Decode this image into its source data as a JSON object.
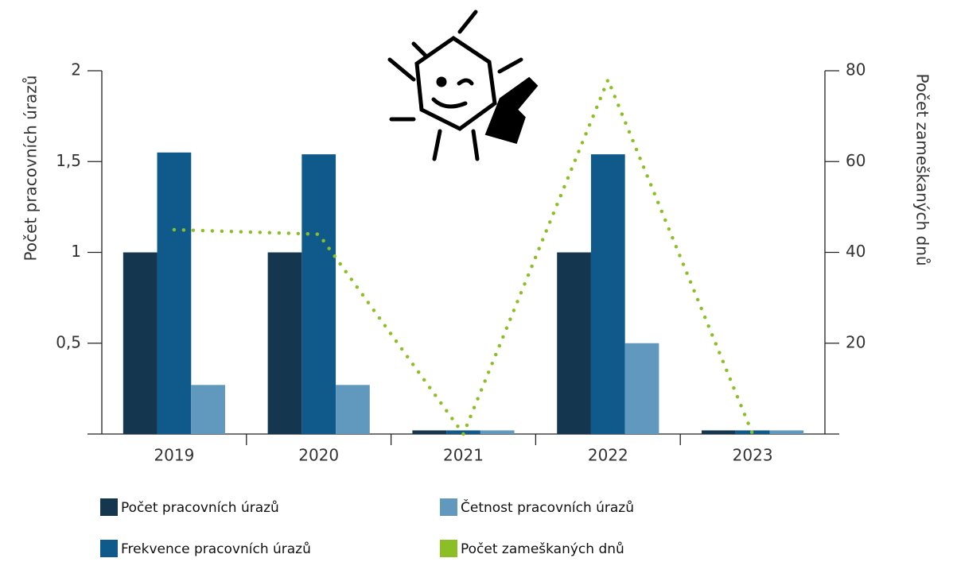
{
  "chart_data": {
    "type": "bar",
    "categories": [
      "2019",
      "2020",
      "2021",
      "2022",
      "2023"
    ],
    "y_label": "Počet pracovních úrazů",
    "y2_label": "Počet zameškaných dnů",
    "ylim": [
      0,
      2
    ],
    "yticks": [
      {
        "value": 0.5,
        "label": "0,5"
      },
      1,
      {
        "value": 1.5,
        "label": "1,5"
      },
      2
    ],
    "y2lim": [
      0,
      80
    ],
    "y2ticks": [
      20,
      40,
      60,
      80
    ],
    "series": [
      {
        "name": "Počet pracovních úrazů",
        "color": "#14374f",
        "values": [
          1,
          1,
          0.02,
          1,
          0.02
        ]
      },
      {
        "name": "Frekvence pracovních úrazů",
        "color": "#0f5a8a",
        "values": [
          1.55,
          1.54,
          0.02,
          1.54,
          0.02
        ]
      },
      {
        "name": "Četnost pracovních úrazů",
        "color": "#6199be",
        "values": [
          0.27,
          0.27,
          0.02,
          0.5,
          0.02
        ]
      },
      {
        "name": "Počet zameškaných dnů",
        "color": "#8cbf26",
        "type": "line",
        "axis": "y2",
        "values": [
          45,
          44,
          0,
          78,
          0
        ]
      }
    ]
  }
}
